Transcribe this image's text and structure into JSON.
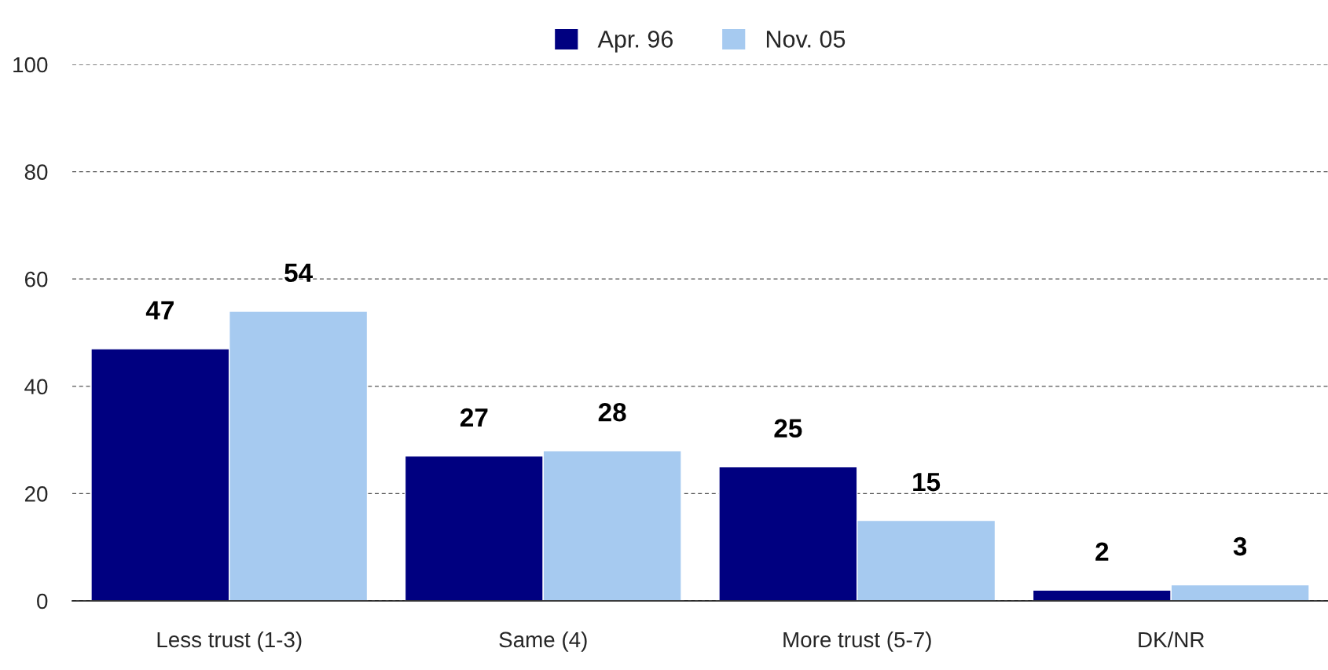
{
  "chart_data": {
    "type": "bar",
    "categories": [
      "Less trust (1-3)",
      "Same (4)",
      "More trust (5-7)",
      "DK/NR"
    ],
    "series": [
      {
        "name": "Apr. 96",
        "color": "#000080",
        "values": [
          47,
          27,
          25,
          2
        ]
      },
      {
        "name": "Nov. 05",
        "color": "#a6caf0",
        "values": [
          54,
          28,
          15,
          3
        ]
      }
    ],
    "ylim": [
      0,
      100
    ],
    "yticks": [
      0,
      20,
      40,
      60,
      80,
      100
    ],
    "grid": "y",
    "legend": "top",
    "data_labels": true
  }
}
